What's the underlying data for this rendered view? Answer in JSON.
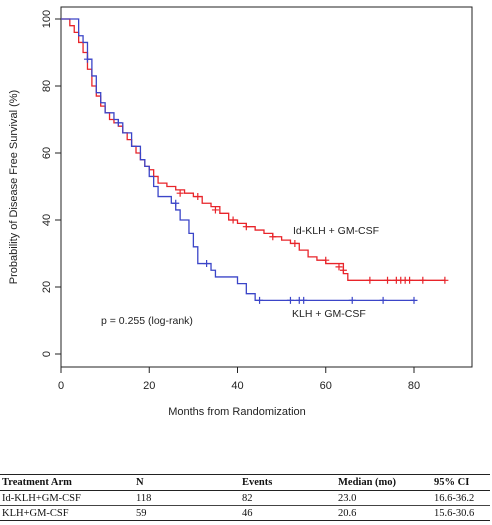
{
  "chart_data": {
    "type": "line",
    "subtype": "kaplan-meier",
    "title": "",
    "xlabel": "Months from Randomization",
    "ylabel": "Probability of Disease Free Survival (%)",
    "xlim": [
      0,
      90
    ],
    "ylim": [
      0,
      100
    ],
    "xticks": [
      0,
      20,
      40,
      60,
      80
    ],
    "yticks": [
      0,
      20,
      40,
      60,
      80,
      100
    ],
    "grid": false,
    "annotation": "p = 0.255 (log-rank)",
    "series": [
      {
        "name": "Id-KLH + GM-CSF",
        "color": "#e8242a",
        "steps": [
          [
            0,
            100
          ],
          [
            2,
            98
          ],
          [
            3,
            96
          ],
          [
            4,
            93
          ],
          [
            5,
            90
          ],
          [
            6,
            85
          ],
          [
            7,
            80
          ],
          [
            8,
            77
          ],
          [
            9,
            74
          ],
          [
            10,
            72
          ],
          [
            11,
            70
          ],
          [
            12,
            69
          ],
          [
            13,
            68
          ],
          [
            14,
            66
          ],
          [
            15,
            64
          ],
          [
            16,
            62
          ],
          [
            17,
            60
          ],
          [
            18,
            58
          ],
          [
            19,
            56
          ],
          [
            20,
            55
          ],
          [
            21,
            53
          ],
          [
            22,
            51
          ],
          [
            24,
            50
          ],
          [
            26,
            49
          ],
          [
            28,
            48
          ],
          [
            30,
            47
          ],
          [
            32,
            45
          ],
          [
            34,
            44
          ],
          [
            36,
            42
          ],
          [
            38,
            40
          ],
          [
            40,
            39
          ],
          [
            42,
            38
          ],
          [
            44,
            37
          ],
          [
            46,
            36
          ],
          [
            48,
            35
          ],
          [
            50,
            34
          ],
          [
            52,
            33
          ],
          [
            54,
            31
          ],
          [
            56,
            29
          ],
          [
            58,
            28
          ],
          [
            60,
            27
          ],
          [
            62,
            27
          ],
          [
            64,
            24
          ],
          [
            65,
            22
          ],
          [
            87,
            22
          ]
        ],
        "censored": [
          [
            27,
            48
          ],
          [
            31,
            47
          ],
          [
            35,
            43
          ],
          [
            39,
            40
          ],
          [
            42,
            38
          ],
          [
            48,
            35
          ],
          [
            53,
            33
          ],
          [
            60,
            28
          ],
          [
            63,
            26
          ],
          [
            64,
            25
          ],
          [
            70,
            22
          ],
          [
            74,
            22
          ],
          [
            76,
            22
          ],
          [
            77,
            22
          ],
          [
            78,
            22
          ],
          [
            79,
            22
          ],
          [
            82,
            22
          ],
          [
            87,
            22
          ]
        ]
      },
      {
        "name": "KLH + GM-CSF",
        "color": "#3b45c8",
        "steps": [
          [
            0,
            100
          ],
          [
            4,
            95
          ],
          [
            5,
            93
          ],
          [
            6,
            88
          ],
          [
            7,
            83
          ],
          [
            8,
            78
          ],
          [
            9,
            75
          ],
          [
            10,
            72
          ],
          [
            12,
            70
          ],
          [
            13,
            69
          ],
          [
            14,
            66
          ],
          [
            16,
            62
          ],
          [
            18,
            58
          ],
          [
            19,
            56
          ],
          [
            20,
            53
          ],
          [
            21,
            50
          ],
          [
            22,
            47
          ],
          [
            25,
            45
          ],
          [
            26,
            43
          ],
          [
            27,
            40
          ],
          [
            29,
            36
          ],
          [
            30,
            32
          ],
          [
            31,
            27
          ],
          [
            34,
            25
          ],
          [
            35,
            23
          ],
          [
            40,
            21
          ],
          [
            42,
            18
          ],
          [
            44,
            16
          ],
          [
            80,
            16
          ]
        ],
        "censored": [
          [
            6,
            88
          ],
          [
            13,
            69
          ],
          [
            26,
            45
          ],
          [
            33,
            27
          ],
          [
            45,
            16
          ],
          [
            52,
            16
          ],
          [
            54,
            16
          ],
          [
            55,
            16
          ],
          [
            66,
            16
          ],
          [
            73,
            16
          ],
          [
            80,
            16
          ]
        ]
      }
    ],
    "series_labels": [
      "Id-KLH + GM-CSF",
      "KLH + GM-CSF"
    ]
  },
  "table": {
    "headers": [
      "Treatment Arm",
      "N",
      "Events",
      "Median (mo)",
      "95% CI"
    ],
    "rows": [
      [
        "Id-KLH+GM-CSF",
        "118",
        "82",
        "23.0",
        "16.6-36.2"
      ],
      [
        "KLH+GM-CSF",
        "59",
        "46",
        "20.6",
        "15.6-30.6"
      ]
    ]
  }
}
